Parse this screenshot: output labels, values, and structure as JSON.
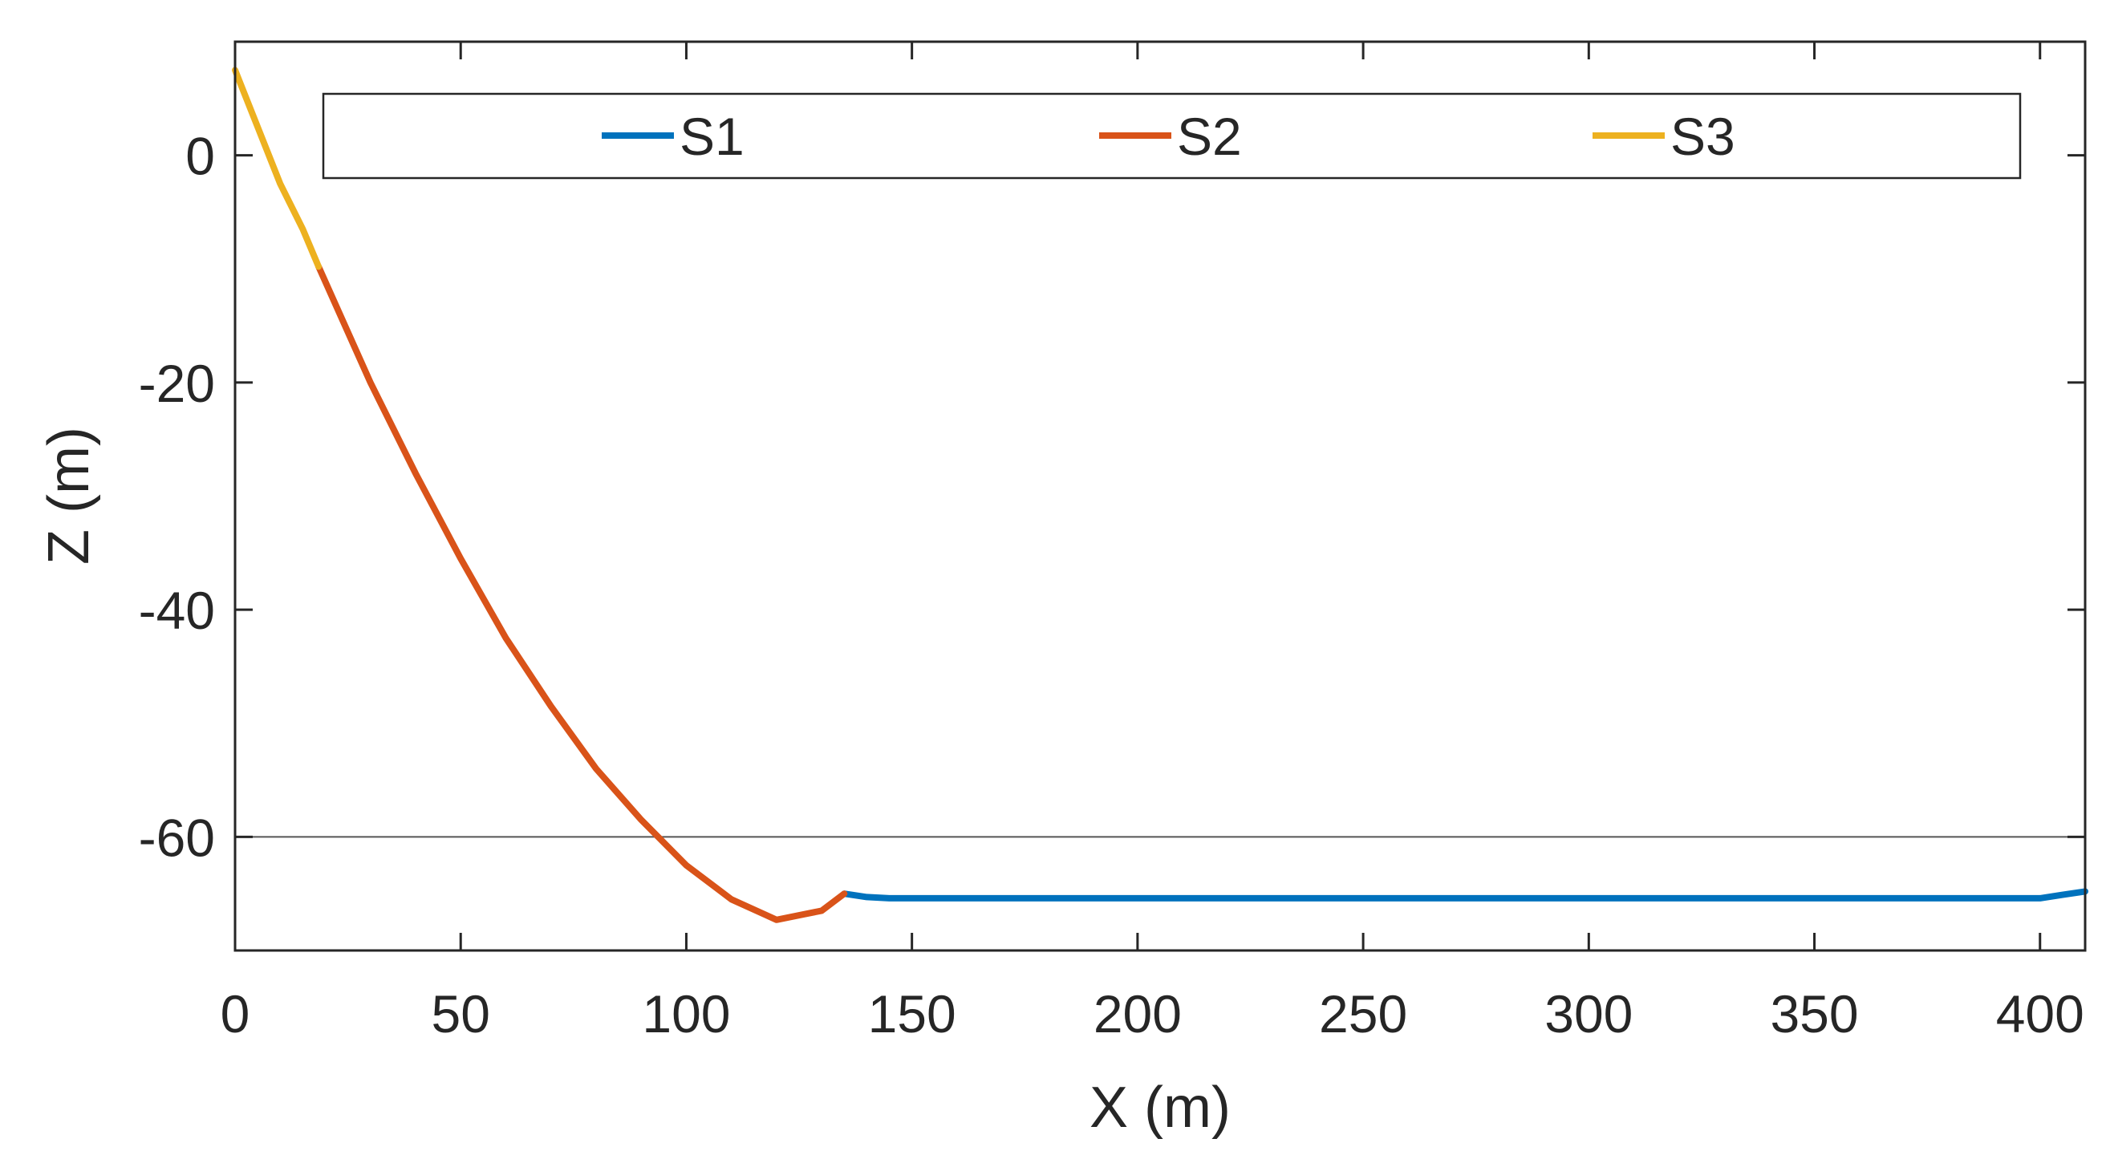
{
  "chart_data": {
    "type": "line",
    "title": "",
    "xlabel": "X (m)",
    "ylabel": "Z (m)",
    "xlim": [
      0,
      410
    ],
    "ylim": [
      -70,
      10
    ],
    "xticks": [
      0,
      50,
      100,
      150,
      200,
      250,
      300,
      350,
      400
    ],
    "yticks": [
      0,
      -20,
      -40,
      -60
    ],
    "xtick_labels": [
      "0",
      "50",
      "100",
      "150",
      "200",
      "250",
      "300",
      "350",
      "400"
    ],
    "ytick_labels": [
      "0",
      "-20",
      "-40",
      "-60"
    ],
    "grid": false,
    "legend_position": "top",
    "legend_orientation": "horizontal",
    "reference_line": {
      "y": -60,
      "color": "#555555"
    },
    "series": [
      {
        "name": "S1",
        "color": "#0072BD",
        "x": [
          135,
          140,
          145,
          150,
          200,
          250,
          300,
          350,
          395,
          400,
          405,
          410
        ],
        "y": [
          -65.0,
          -65.3,
          -65.4,
          -65.4,
          -65.4,
          -65.4,
          -65.4,
          -65.4,
          -65.4,
          -65.4,
          -65.1,
          -64.8
        ]
      },
      {
        "name": "S2",
        "color": "#D95319",
        "x": [
          18.5,
          30,
          40,
          50,
          60,
          70,
          80,
          90,
          100,
          110,
          120,
          130,
          135
        ],
        "y": [
          -9.8,
          -20,
          -28,
          -35.5,
          -42.5,
          -48.5,
          -54,
          -58.5,
          -62.5,
          -65.5,
          -67.3,
          -66.5,
          -65
        ]
      },
      {
        "name": "S3",
        "color": "#EDB120",
        "x": [
          0,
          5,
          10,
          15,
          18.5
        ],
        "y": [
          7.5,
          2.5,
          -2.5,
          -6.5,
          -9.8
        ]
      }
    ]
  }
}
